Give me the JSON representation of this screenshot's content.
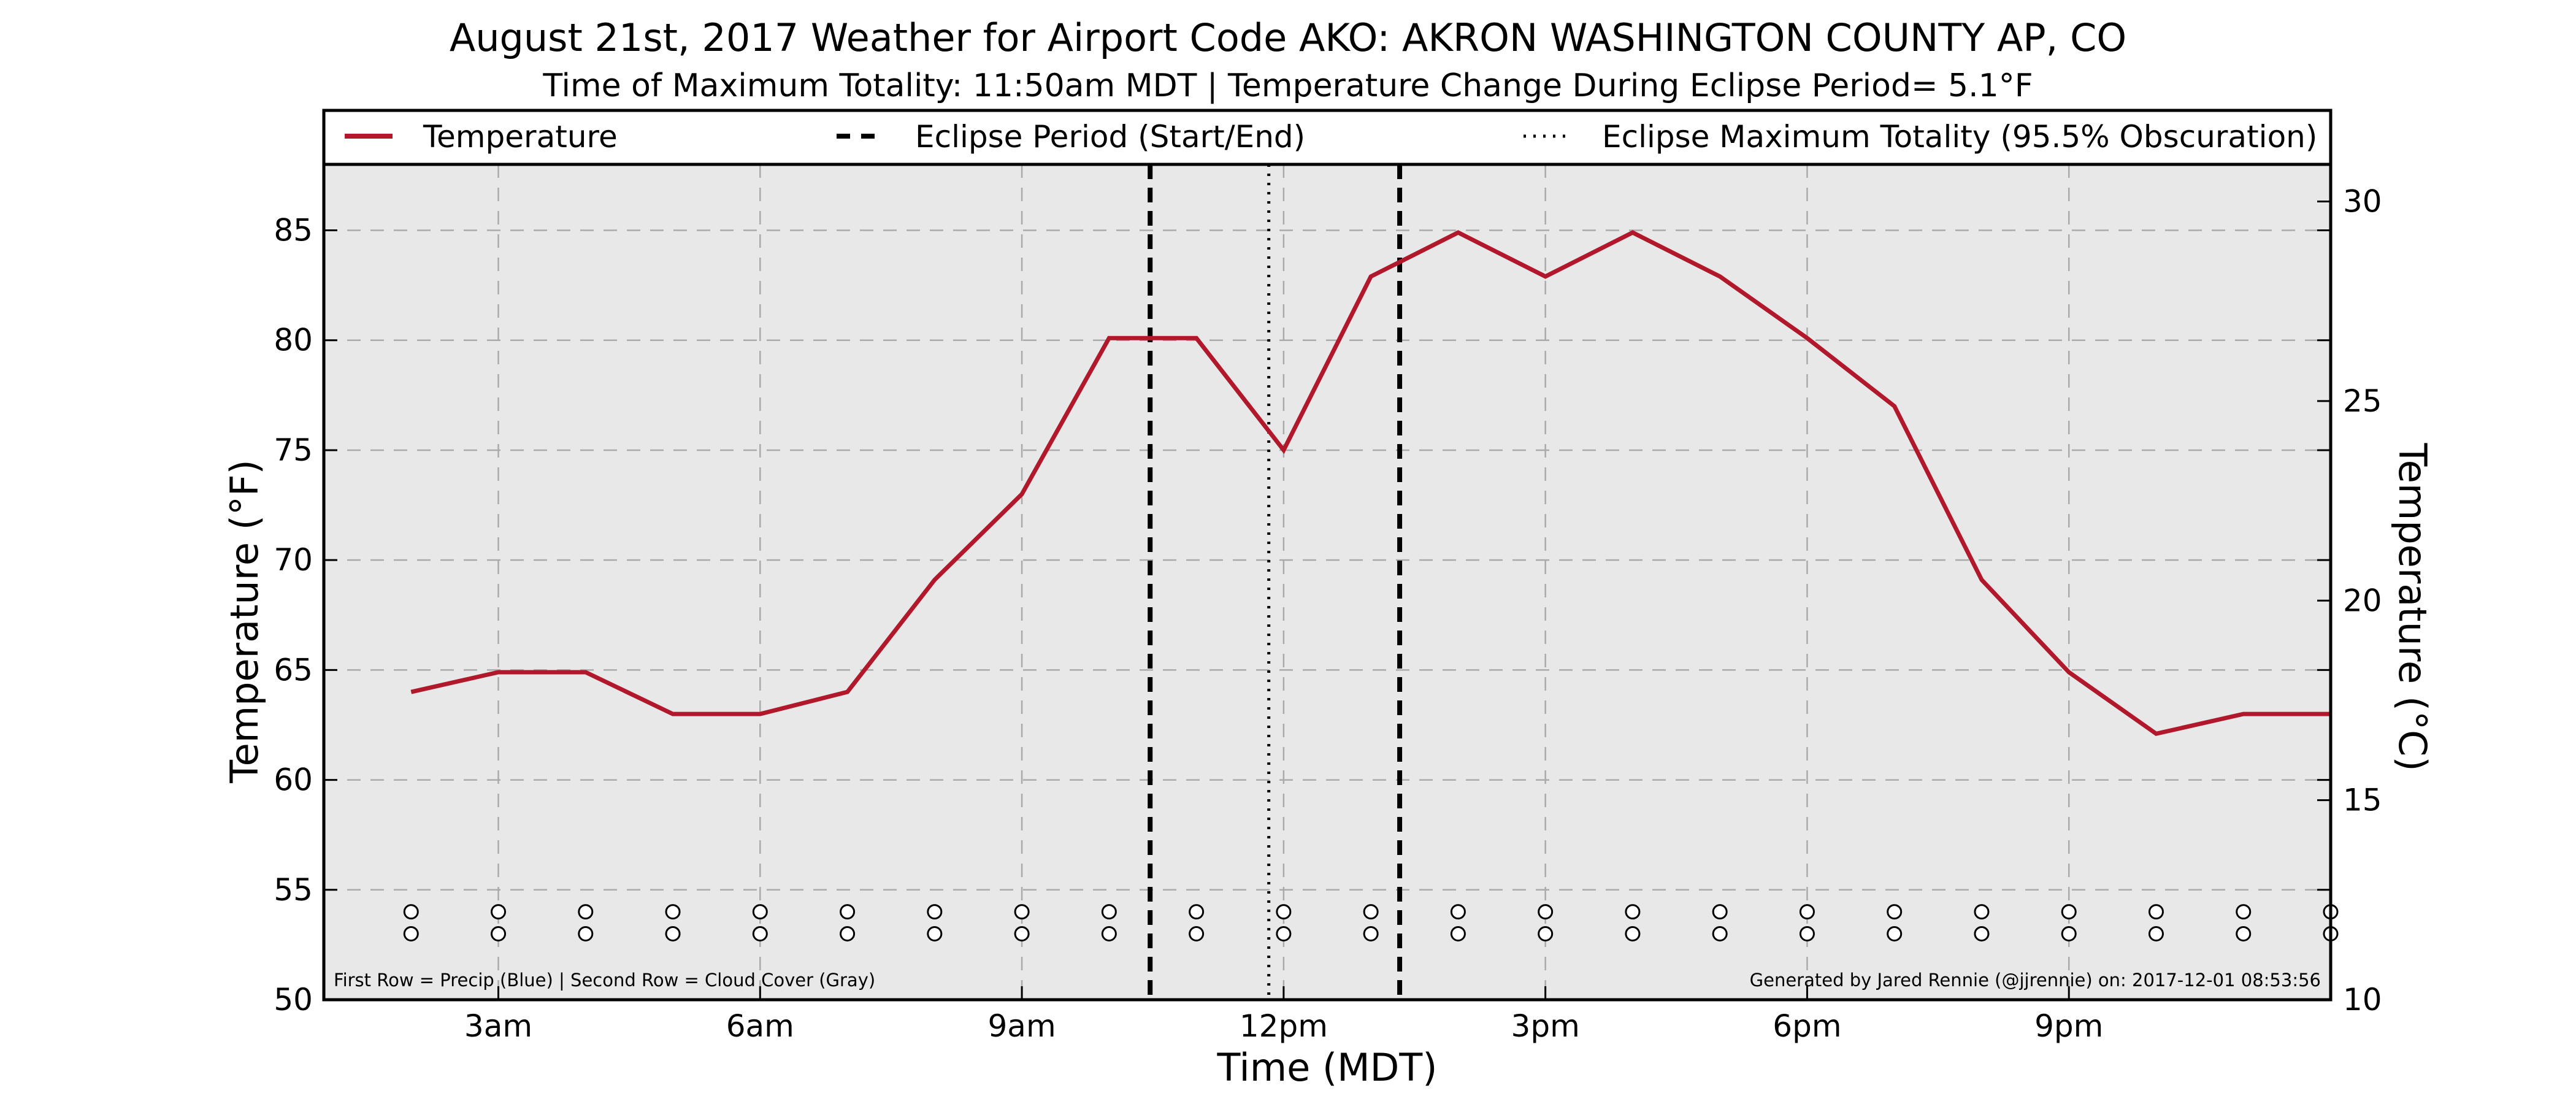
{
  "chart_data": {
    "type": "line",
    "title": "August 21st, 2017 Weather for Airport Code AKO: AKRON WASHINGTON COUNTY AP, CO",
    "subtitle": "Time of Maximum Totality: 11:50am MDT | Temperature Change During Eclipse Period= 5.1°F",
    "xlabel": "Time (MDT)",
    "ylabel_left": "Temperature (°F)",
    "ylabel_right": "Temperature (°C)",
    "xlim": [
      1,
      24
    ],
    "ylim": [
      50,
      88
    ],
    "ylim_right": [
      10,
      30.93
    ],
    "x_ticks": [
      {
        "x": 3,
        "label": "3am"
      },
      {
        "x": 6,
        "label": "6am"
      },
      {
        "x": 9,
        "label": "9am"
      },
      {
        "x": 12,
        "label": "12pm"
      },
      {
        "x": 15,
        "label": "3pm"
      },
      {
        "x": 18,
        "label": "6pm"
      },
      {
        "x": 21,
        "label": "9pm"
      }
    ],
    "y_ticks_left": [
      50,
      55,
      60,
      65,
      70,
      75,
      80,
      85
    ],
    "y_ticks_right": [
      10,
      15,
      20,
      25,
      30
    ],
    "grid": true,
    "legend_position": "top",
    "legend": [
      {
        "label": "Temperature",
        "style": "solid"
      },
      {
        "label": "Eclipse Period (Start/End)",
        "style": "dashed"
      },
      {
        "label": "Eclipse Maximum Totality (95.5% Obscuration)",
        "style": "dotted"
      }
    ],
    "series": [
      {
        "name": "Temperature",
        "color": "#b2182b",
        "x": [
          2,
          3,
          3.5,
          4,
          5,
          6,
          7,
          8,
          9,
          10,
          10.5,
          11,
          12,
          13,
          14,
          15,
          16,
          17,
          18,
          19,
          20,
          21,
          22,
          23,
          24
        ],
        "y": [
          64,
          64.9,
          64.9,
          64.9,
          63,
          63,
          64,
          69.1,
          73,
          80.1,
          80.1,
          80.1,
          75,
          82.9,
          84.9,
          82.9,
          84.9,
          82.9,
          80.1,
          77,
          69.1,
          64.9,
          62.1,
          63,
          63
        ]
      }
    ],
    "eclipse_period": {
      "start": 10.47,
      "end": 13.33,
      "color": "#000000"
    },
    "max_totality": {
      "x": 11.83,
      "color": "#000000"
    },
    "marker_rows": {
      "x": [
        2,
        3,
        4,
        5,
        6,
        7,
        8,
        9,
        10,
        11,
        12,
        13,
        14,
        15,
        16,
        17,
        18,
        19,
        20,
        21,
        22,
        23,
        24
      ],
      "precip_y": 54,
      "cloud_y": 53
    },
    "footnote_left": "First Row = Precip (Blue) | Second Row = Cloud Cover (Gray)",
    "footnote_right": "Generated by Jared Rennie (@jjrennie) on: 2017-12-01 08:53:56",
    "colors": {
      "plot_bg": "#e8e8e8",
      "grid": "#aaaaaa",
      "temperature": "#b2182b"
    }
  }
}
